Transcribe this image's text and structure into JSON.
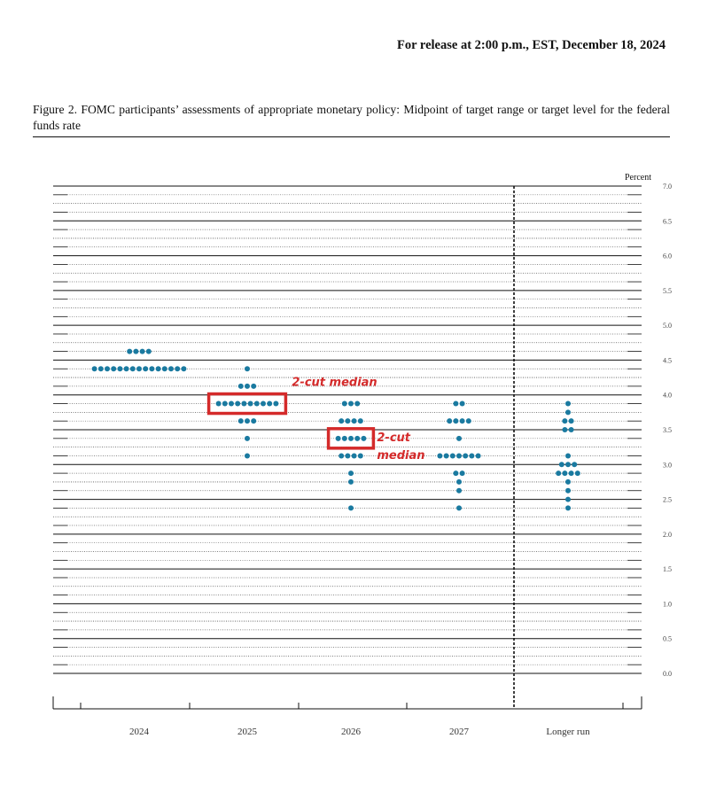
{
  "header": {
    "release": "For release at 2:00 p.m., EST, December 18, 2024"
  },
  "figure": {
    "title": "Figure 2. FOMC participants’ assessments of appropriate monetary policy: Midpoint of target range or target level for the federal funds rate"
  },
  "chart_data": {
    "type": "scatter",
    "subtype": "dot plot",
    "title": "",
    "xlabel": "",
    "ylabel": "Percent",
    "ylim": [
      0.0,
      7.0
    ],
    "yticks": [
      "0.0",
      "0.5",
      "1.0",
      "1.5",
      "2.0",
      "2.5",
      "3.0",
      "3.5",
      "4.0",
      "4.5",
      "5.0",
      "5.5",
      "6.0",
      "6.5",
      "7.0"
    ],
    "grid": true,
    "dot_color": "#1a7aa0",
    "categories": [
      "2024",
      "2025",
      "2026",
      "2027",
      "Longer run"
    ],
    "distributions": [
      {
        "category": "2024",
        "dots": [
          {
            "rate": 4.625,
            "count": 4
          },
          {
            "rate": 4.375,
            "count": 15
          }
        ]
      },
      {
        "category": "2025",
        "dots": [
          {
            "rate": 4.375,
            "count": 1
          },
          {
            "rate": 4.125,
            "count": 3
          },
          {
            "rate": 3.875,
            "count": 10
          },
          {
            "rate": 3.625,
            "count": 3
          },
          {
            "rate": 3.375,
            "count": 1
          },
          {
            "rate": 3.125,
            "count": 1
          }
        ]
      },
      {
        "category": "2026",
        "dots": [
          {
            "rate": 3.875,
            "count": 3
          },
          {
            "rate": 3.625,
            "count": 4
          },
          {
            "rate": 3.375,
            "count": 5
          },
          {
            "rate": 3.125,
            "count": 4
          },
          {
            "rate": 2.875,
            "count": 1
          },
          {
            "rate": 2.75,
            "count": 1
          },
          {
            "rate": 2.375,
            "count": 1
          }
        ]
      },
      {
        "category": "2027",
        "dots": [
          {
            "rate": 3.875,
            "count": 2
          },
          {
            "rate": 3.625,
            "count": 4
          },
          {
            "rate": 3.375,
            "count": 1
          },
          {
            "rate": 3.125,
            "count": 7
          },
          {
            "rate": 2.875,
            "count": 2
          },
          {
            "rate": 2.75,
            "count": 1
          },
          {
            "rate": 2.625,
            "count": 1
          },
          {
            "rate": 2.375,
            "count": 1
          }
        ]
      },
      {
        "category": "Longer run",
        "dots": [
          {
            "rate": 3.875,
            "count": 1
          },
          {
            "rate": 3.75,
            "count": 1
          },
          {
            "rate": 3.625,
            "count": 2
          },
          {
            "rate": 3.5,
            "count": 2
          },
          {
            "rate": 3.125,
            "count": 1
          },
          {
            "rate": 3.0,
            "count": 3
          },
          {
            "rate": 2.875,
            "count": 4
          },
          {
            "rate": 2.75,
            "count": 1
          },
          {
            "rate": 2.625,
            "count": 1
          },
          {
            "rate": 2.5,
            "count": 1
          },
          {
            "rate": 2.375,
            "count": 1
          }
        ]
      }
    ],
    "annotations": [
      {
        "category": "2025",
        "rate": 3.875,
        "label": "2-cut median",
        "color": "#d42a2a"
      },
      {
        "category": "2026",
        "rate": 3.375,
        "label_lines": [
          "2-cut",
          "median"
        ],
        "color": "#d42a2a"
      }
    ]
  }
}
